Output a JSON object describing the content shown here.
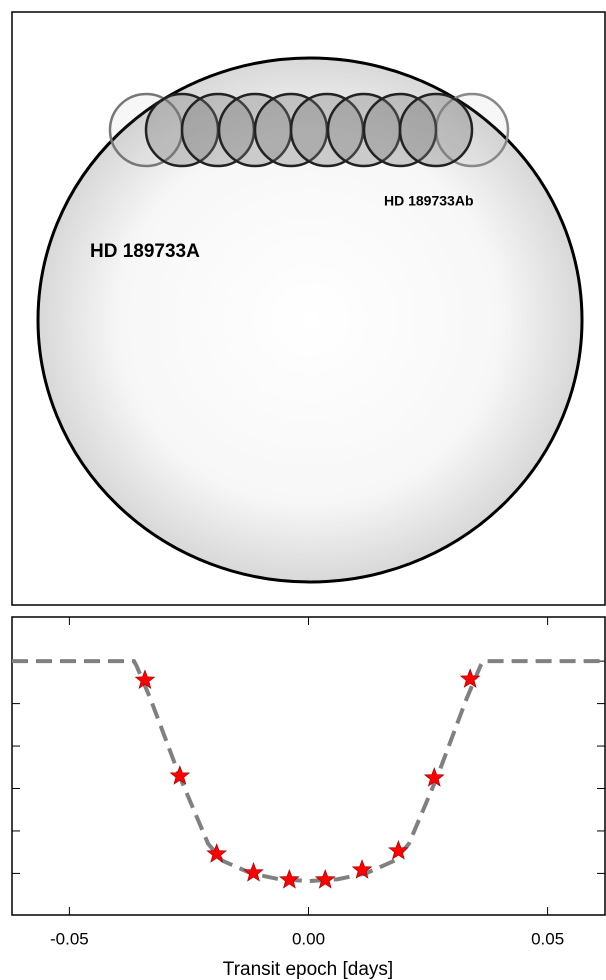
{
  "diagram": {
    "star_label": "HD 189733A",
    "planet_label": "HD 189733Ab"
  },
  "chart_data": {
    "type": "line",
    "x_label": "Transit epoch [days]",
    "xlim": [
      -0.062,
      0.062
    ],
    "xticks": [
      -0.05,
      {
        "value": 0,
        "label": "0.00"
      },
      0.05
    ],
    "ylim": [
      0.9701,
      1.0052
    ],
    "yticks": [
      1.0,
      0.995,
      0.99,
      0.985,
      0.98,
      0.975
    ],
    "series": [
      {
        "color": "#808080",
        "style": "dashed",
        "x": [
          -0.062,
          -0.0365,
          -0.036,
          -0.033,
          -0.03,
          -0.027,
          -0.024,
          -0.021,
          -0.018,
          -0.012,
          -0.006,
          0,
          0.006,
          0.012,
          0.018,
          0.021,
          0.024,
          0.027,
          0.03,
          0.033,
          0.036,
          0.0365,
          0.062
        ],
        "values": [
          1.0,
          1.0,
          0.9995,
          0.9955,
          0.991,
          0.9865,
          0.9825,
          0.9785,
          0.9765,
          0.975,
          0.9743,
          0.9741,
          0.9743,
          0.975,
          0.9765,
          0.9785,
          0.9825,
          0.9865,
          0.991,
          0.9955,
          0.9995,
          1.0,
          1.0
        ]
      },
      {
        "color": "#ff0000",
        "marker": "star",
        "x": [
          -0.0342,
          -0.0269,
          -0.0192,
          -0.0115,
          -0.004,
          0.0035,
          0.0112,
          0.0188,
          0.0263,
          0.0338
        ],
        "values": [
          0.99776,
          0.98647,
          0.97729,
          0.97506,
          0.97424,
          0.97424,
          0.97541,
          0.97765,
          0.98624,
          0.99788
        ]
      }
    ]
  }
}
